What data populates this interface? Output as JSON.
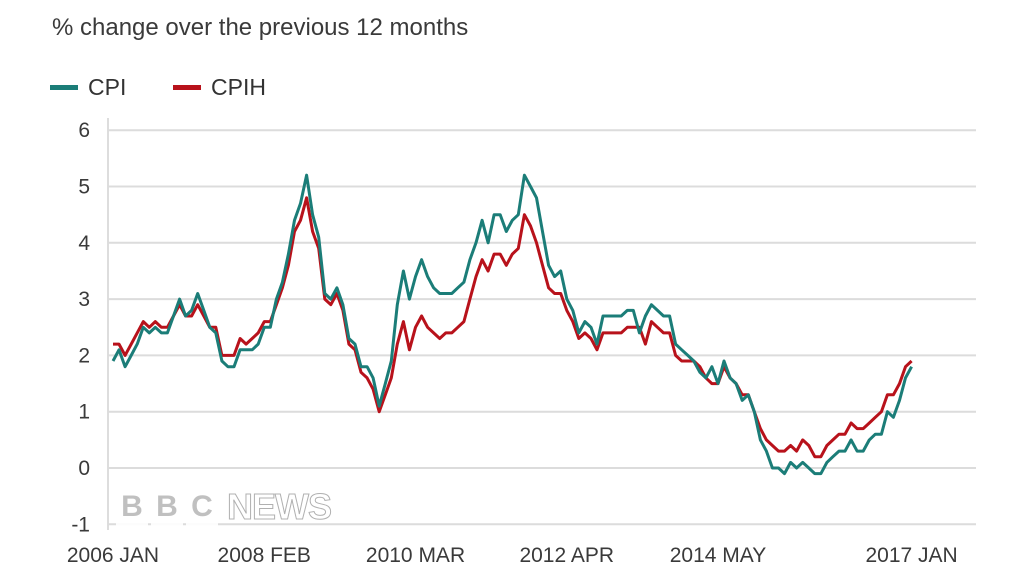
{
  "chart_data": {
    "type": "line",
    "title": "% change over the previous 12 months",
    "x_start": "2006-01",
    "x_end": "2017-01",
    "x_ticks": [
      {
        "month": "2006-01",
        "label": "2006 JAN"
      },
      {
        "month": "2008-02",
        "label": "2008 FEB"
      },
      {
        "month": "2010-03",
        "label": "2010 MAR"
      },
      {
        "month": "2012-04",
        "label": "2012 APR"
      },
      {
        "month": "2014-05",
        "label": "2014 MAY"
      },
      {
        "month": "2017-01",
        "label": "2017 JAN"
      }
    ],
    "y_ticks": [
      "-1",
      "0",
      "1",
      "2",
      "3",
      "4",
      "5",
      "6"
    ],
    "ylim": [
      -1,
      6
    ],
    "grid": true,
    "legend_position": "top-left",
    "series": [
      {
        "name": "CPI",
        "color": "#1b7d78",
        "values": [
          1.9,
          2.1,
          1.8,
          2.0,
          2.2,
          2.5,
          2.4,
          2.5,
          2.4,
          2.4,
          2.7,
          3.0,
          2.7,
          2.8,
          3.1,
          2.8,
          2.5,
          2.4,
          1.9,
          1.8,
          1.8,
          2.1,
          2.1,
          2.1,
          2.2,
          2.5,
          2.5,
          3.0,
          3.3,
          3.8,
          4.4,
          4.7,
          5.2,
          4.5,
          4.1,
          3.1,
          3.0,
          3.2,
          2.9,
          2.3,
          2.2,
          1.8,
          1.8,
          1.6,
          1.1,
          1.5,
          1.9,
          2.9,
          3.5,
          3.0,
          3.4,
          3.7,
          3.4,
          3.2,
          3.1,
          3.1,
          3.1,
          3.2,
          3.3,
          3.7,
          4.0,
          4.4,
          4.0,
          4.5,
          4.5,
          4.2,
          4.4,
          4.5,
          5.2,
          5.0,
          4.8,
          4.2,
          3.6,
          3.4,
          3.5,
          3.0,
          2.8,
          2.4,
          2.6,
          2.5,
          2.2,
          2.7,
          2.7,
          2.7,
          2.7,
          2.8,
          2.8,
          2.4,
          2.7,
          2.9,
          2.8,
          2.7,
          2.7,
          2.2,
          2.1,
          2.0,
          1.9,
          1.7,
          1.6,
          1.8,
          1.5,
          1.9,
          1.6,
          1.5,
          1.2,
          1.3,
          1.0,
          0.5,
          0.3,
          0.0,
          0.0,
          -0.1,
          0.1,
          0.0,
          0.1,
          0.0,
          -0.1,
          -0.1,
          0.1,
          0.2,
          0.3,
          0.3,
          0.5,
          0.3,
          0.3,
          0.5,
          0.6,
          0.6,
          1.0,
          0.9,
          1.2,
          1.6,
          1.8
        ]
      },
      {
        "name": "CPIH",
        "color": "#b8121b",
        "values": [
          2.2,
          2.2,
          2.0,
          2.2,
          2.4,
          2.6,
          2.5,
          2.6,
          2.5,
          2.5,
          2.7,
          2.9,
          2.7,
          2.7,
          2.9,
          2.7,
          2.5,
          2.5,
          2.0,
          2.0,
          2.0,
          2.3,
          2.2,
          2.3,
          2.4,
          2.6,
          2.6,
          2.9,
          3.2,
          3.6,
          4.2,
          4.4,
          4.8,
          4.2,
          3.9,
          3.0,
          2.9,
          3.1,
          2.8,
          2.2,
          2.1,
          1.7,
          1.6,
          1.4,
          1.0,
          1.3,
          1.6,
          2.2,
          2.6,
          2.1,
          2.5,
          2.7,
          2.5,
          2.4,
          2.3,
          2.4,
          2.4,
          2.5,
          2.6,
          3.0,
          3.4,
          3.7,
          3.5,
          3.8,
          3.8,
          3.6,
          3.8,
          3.9,
          4.5,
          4.3,
          4.0,
          3.6,
          3.2,
          3.1,
          3.1,
          2.8,
          2.6,
          2.3,
          2.4,
          2.3,
          2.1,
          2.4,
          2.4,
          2.4,
          2.4,
          2.5,
          2.5,
          2.5,
          2.2,
          2.6,
          2.5,
          2.4,
          2.4,
          2.0,
          1.9,
          1.9,
          1.9,
          1.8,
          1.6,
          1.5,
          1.5,
          1.8,
          1.6,
          1.5,
          1.3,
          1.3,
          1.0,
          0.7,
          0.5,
          0.4,
          0.3,
          0.3,
          0.4,
          0.3,
          0.5,
          0.4,
          0.2,
          0.2,
          0.4,
          0.5,
          0.6,
          0.6,
          0.8,
          0.7,
          0.7,
          0.8,
          0.9,
          1.0,
          1.3,
          1.3,
          1.5,
          1.8,
          1.9
        ]
      }
    ]
  },
  "watermark": "BBC NEWS"
}
